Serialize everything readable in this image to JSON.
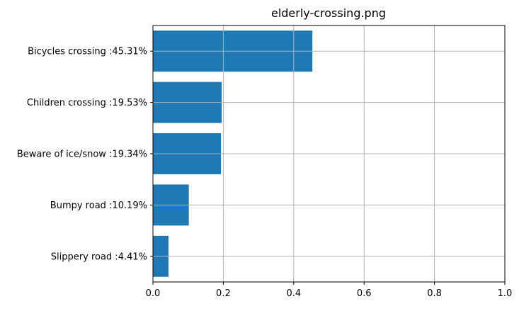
{
  "chart_data": {
    "type": "bar",
    "orientation": "horizontal",
    "title": "elderly-crossing.png",
    "xlabel": "",
    "ylabel": "",
    "categories": [
      "Bicycles crossing :45.31%",
      "Children crossing :19.53%",
      "Beware of ice/snow :19.34%",
      "Bumpy road :10.19%",
      "Slippery road :4.41%"
    ],
    "values": [
      0.4531,
      0.1953,
      0.1934,
      0.1019,
      0.0441
    ],
    "xlim": [
      0,
      1
    ],
    "xticks": [
      "0.0",
      "0.2",
      "0.4",
      "0.6",
      "0.8",
      "1.0"
    ],
    "grid": true,
    "legend": "none",
    "colors": {
      "bar": "#1f77b4",
      "grid": "#b0b0b0",
      "axis": "#000000"
    }
  }
}
